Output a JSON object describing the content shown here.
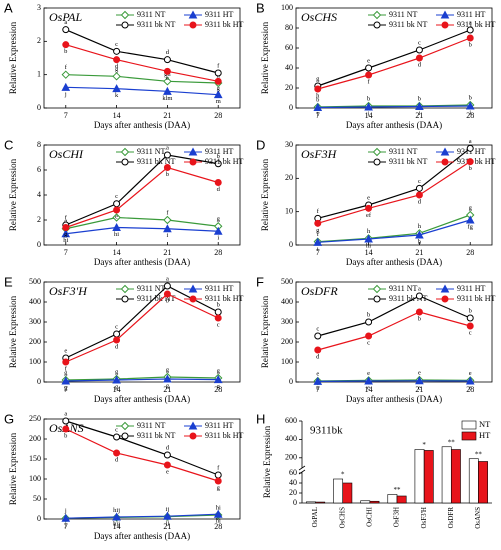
{
  "chart_data": [
    {
      "type": "line",
      "panel": "A",
      "title": "OsPAL",
      "xlabel": "Days after anthesis (DAA)",
      "ylabel": "Relative Expression",
      "x": [
        7,
        14,
        21,
        28
      ],
      "xlim": [
        4,
        31
      ],
      "xticks": [
        7,
        14,
        21,
        28
      ],
      "ylim": [
        0,
        3
      ],
      "yticks": [
        0,
        1,
        2,
        3
      ],
      "legend": "top",
      "series": [
        {
          "name": "9311 NT",
          "color": "#3a9a3a",
          "marker": "open-diamond",
          "values": [
            1.0,
            0.95,
            0.8,
            0.75
          ],
          "letters": [
            "f",
            "g",
            "gh",
            "h"
          ]
        },
        {
          "name": "9311 HT",
          "color": "#1a3fd0",
          "marker": "triangle",
          "values": [
            0.62,
            0.58,
            0.5,
            0.4
          ],
          "letters": [
            "j",
            "k",
            "klm",
            "m"
          ]
        },
        {
          "name": "9311 bk NT",
          "color": "#000000",
          "marker": "open-circle",
          "values": [
            2.35,
            1.7,
            1.45,
            1.05
          ],
          "letters": [
            "a",
            "c",
            "d",
            "f"
          ]
        },
        {
          "name": "9311 bk HT",
          "color": "#e8141b",
          "marker": "circle",
          "values": [
            1.9,
            1.45,
            1.1,
            0.8
          ],
          "letters": [
            "b",
            "d",
            "e",
            "g"
          ]
        }
      ]
    },
    {
      "type": "line",
      "panel": "B",
      "title": "OsCHS",
      "xlabel": "Days after anthesis (DAA)",
      "ylabel": "Relative Expression",
      "x": [
        7,
        14,
        21,
        28
      ],
      "xlim": [
        4,
        31
      ],
      "xticks": [
        7,
        14,
        21,
        28
      ],
      "ylim": [
        0,
        100
      ],
      "yticks": [
        0,
        20,
        40,
        60,
        80,
        100
      ],
      "legend": "top",
      "series": [
        {
          "name": "9311 NT",
          "color": "#3a9a3a",
          "marker": "open-diamond",
          "values": [
            1,
            2,
            2,
            3
          ],
          "letters": [
            "b",
            "b",
            "b",
            "b"
          ]
        },
        {
          "name": "9311 HT",
          "color": "#1a3fd0",
          "marker": "triangle",
          "values": [
            0.5,
            1,
            1.5,
            2
          ],
          "letters": [
            "i",
            "i",
            "i",
            "i"
          ]
        },
        {
          "name": "9311 bk NT",
          "color": "#000000",
          "marker": "open-circle",
          "values": [
            22,
            40,
            58,
            78
          ],
          "letters": [
            "g",
            "e",
            "c",
            "a"
          ]
        },
        {
          "name": "9311 bk HT",
          "color": "#e8141b",
          "marker": "circle",
          "values": [
            19,
            33,
            50,
            70
          ],
          "letters": [
            "h",
            "f",
            "d",
            "b"
          ]
        }
      ]
    },
    {
      "type": "line",
      "panel": "C",
      "title": "OsCHI",
      "xlabel": "Days after anthesis (DAA)",
      "ylabel": "Relative Expression",
      "x": [
        7,
        14,
        21,
        28
      ],
      "xlim": [
        4,
        31
      ],
      "xticks": [
        7,
        14,
        21,
        28
      ],
      "ylim": [
        0,
        8
      ],
      "yticks": [
        0,
        2,
        4,
        6,
        8
      ],
      "legend": "top",
      "series": [
        {
          "name": "9311 NT",
          "color": "#3a9a3a",
          "marker": "open-diamond",
          "values": [
            1.3,
            2.2,
            2.0,
            1.5
          ],
          "letters": [
            "g",
            "e",
            "f",
            "g"
          ]
        },
        {
          "name": "9311 HT",
          "color": "#1a3fd0",
          "marker": "triangle",
          "values": [
            0.9,
            1.4,
            1.3,
            1.1
          ],
          "letters": [
            "hi",
            "hi",
            "i",
            "i"
          ]
        },
        {
          "name": "9311 bk NT",
          "color": "#000000",
          "marker": "open-circle",
          "values": [
            1.6,
            3.3,
            7.2,
            6.5
          ],
          "letters": [
            "f",
            "c",
            "a",
            "b"
          ]
        },
        {
          "name": "9311 bk HT",
          "color": "#e8141b",
          "marker": "circle",
          "values": [
            1.4,
            2.8,
            6.2,
            5.0
          ],
          "letters": [
            "g",
            "e",
            "b",
            "d"
          ]
        }
      ]
    },
    {
      "type": "line",
      "panel": "D",
      "title": "OsF3H",
      "xlabel": "Days after anthesis (DAA)",
      "ylabel": "Relative Expression",
      "x": [
        7,
        14,
        21,
        28
      ],
      "xlim": [
        4,
        31
      ],
      "xticks": [
        7,
        14,
        21,
        28
      ],
      "ylim": [
        0,
        30
      ],
      "yticks": [
        0,
        10,
        20,
        30
      ],
      "legend": "top",
      "series": [
        {
          "name": "9311 NT",
          "color": "#3a9a3a",
          "marker": "open-diamond",
          "values": [
            1.0,
            2.0,
            3.5,
            9
          ],
          "letters": [
            "i",
            "h",
            "h",
            "g"
          ]
        },
        {
          "name": "9311 HT",
          "color": "#1a3fd0",
          "marker": "triangle",
          "values": [
            0.8,
            1.8,
            3,
            7.5
          ],
          "letters": [
            "i",
            "hi",
            "h",
            "fg"
          ]
        },
        {
          "name": "9311 bk NT",
          "color": "#000000",
          "marker": "open-circle",
          "values": [
            8,
            12,
            17,
            29
          ],
          "letters": [
            "f",
            "e",
            "c",
            "a"
          ]
        },
        {
          "name": "9311 bk HT",
          "color": "#e8141b",
          "marker": "circle",
          "values": [
            6.5,
            11,
            15,
            25
          ],
          "letters": [
            "g",
            "ef",
            "d",
            "b"
          ]
        }
      ]
    },
    {
      "type": "line",
      "panel": "E",
      "title": "OsF3'H",
      "xlabel": "Days after anthesis (DAA)",
      "ylabel": "Relative Expression",
      "x": [
        7,
        14,
        21,
        28
      ],
      "xlim": [
        4,
        31
      ],
      "xticks": [
        7,
        14,
        21,
        28
      ],
      "ylim": [
        0,
        500
      ],
      "yticks": [
        0,
        100,
        200,
        300,
        400,
        500
      ],
      "legend": "top",
      "series": [
        {
          "name": "9311 NT",
          "color": "#3a9a3a",
          "marker": "open-diamond",
          "values": [
            10,
            15,
            25,
            20
          ],
          "letters": [
            "g",
            "g",
            "g",
            "g"
          ]
        },
        {
          "name": "9311 HT",
          "color": "#1a3fd0",
          "marker": "triangle",
          "values": [
            5,
            10,
            15,
            12
          ],
          "letters": [
            "g",
            "g",
            "g",
            "g"
          ]
        },
        {
          "name": "9311 bk NT",
          "color": "#000000",
          "marker": "open-circle",
          "values": [
            120,
            240,
            480,
            350
          ],
          "letters": [
            "e",
            "c",
            "a",
            "b"
          ]
        },
        {
          "name": "9311 bk HT",
          "color": "#e8141b",
          "marker": "circle",
          "values": [
            100,
            210,
            440,
            320
          ],
          "letters": [
            "f",
            "d",
            "b",
            "c"
          ]
        }
      ]
    },
    {
      "type": "line",
      "panel": "F",
      "title": "OsDFR",
      "xlabel": "Days after anthesis (DAA)",
      "ylabel": "Relative Expression",
      "x": [
        7,
        14,
        21,
        28
      ],
      "xlim": [
        4,
        31
      ],
      "xticks": [
        7,
        14,
        21,
        28
      ],
      "ylim": [
        0,
        500
      ],
      "yticks": [
        0,
        100,
        200,
        300,
        400,
        500
      ],
      "legend": "top",
      "series": [
        {
          "name": "9311 NT",
          "color": "#3a9a3a",
          "marker": "open-diamond",
          "values": [
            5,
            8,
            10,
            8
          ],
          "letters": [
            "e",
            "e",
            "e",
            "e"
          ]
        },
        {
          "name": "9311 HT",
          "color": "#1a3fd0",
          "marker": "triangle",
          "values": [
            3,
            5,
            6,
            5
          ],
          "letters": [
            "e",
            "e",
            "e",
            "e"
          ]
        },
        {
          "name": "9311 bk NT",
          "color": "#000000",
          "marker": "open-circle",
          "values": [
            230,
            300,
            430,
            320
          ],
          "letters": [
            "c",
            "b",
            "a",
            "b"
          ]
        },
        {
          "name": "9311 bk HT",
          "color": "#e8141b",
          "marker": "circle",
          "values": [
            160,
            230,
            350,
            280
          ],
          "letters": [
            "d",
            "c",
            "b",
            "c"
          ]
        }
      ]
    },
    {
      "type": "line",
      "panel": "G",
      "title": "OsANS",
      "xlabel": "Days after anthesis (DAA)",
      "ylabel": "Relative Expression",
      "x": [
        7,
        14,
        21,
        28
      ],
      "xlim": [
        4,
        31
      ],
      "xticks": [
        7,
        14,
        21,
        28
      ],
      "ylim": [
        0,
        250
      ],
      "yticks": [
        0,
        50,
        100,
        150,
        200,
        250
      ],
      "legend": "top",
      "series": [
        {
          "name": "9311 NT",
          "color": "#3a9a3a",
          "marker": "open-diamond",
          "values": [
            2,
            4,
            6,
            10
          ],
          "letters": [
            "j",
            "hij",
            "ij",
            "hi"
          ]
        },
        {
          "name": "9311 HT",
          "color": "#1a3fd0",
          "marker": "triangle",
          "values": [
            2,
            5,
            7,
            12
          ],
          "letters": [
            "j",
            "hij",
            "ij",
            "hi"
          ]
        },
        {
          "name": "9311 bk NT",
          "color": "#000000",
          "marker": "open-circle",
          "values": [
            245,
            205,
            160,
            110
          ],
          "letters": [
            "a",
            "c",
            "d",
            "f"
          ]
        },
        {
          "name": "9311 bk HT",
          "color": "#e8141b",
          "marker": "circle",
          "values": [
            225,
            165,
            135,
            95
          ],
          "letters": [
            "b",
            "d",
            "e",
            "g"
          ]
        }
      ]
    },
    {
      "type": "bar",
      "panel": "H",
      "title": "9311bk",
      "ylabel": "Relative Expression",
      "categories": [
        "OsPAL",
        "OsCHS",
        "OsCHI",
        "OsF3H",
        "OsF3'H",
        "OsDFR",
        "OsANS"
      ],
      "ylim": [
        0,
        600
      ],
      "ybreak": [
        60,
        100
      ],
      "yticks": [
        0,
        20,
        40,
        60,
        200,
        400,
        600
      ],
      "legend": "upper-right",
      "significance": [
        null,
        "*",
        null,
        "**",
        "*",
        "**",
        "**"
      ],
      "series": [
        {
          "name": "NT",
          "color": "#ffffff",
          "values": [
            2.3,
            48,
            4.5,
            17,
            290,
            320,
            190
          ]
        },
        {
          "name": "HT",
          "color": "#e8141b",
          "values": [
            1.9,
            40,
            3.5,
            14,
            280,
            290,
            160
          ]
        }
      ]
    }
  ]
}
